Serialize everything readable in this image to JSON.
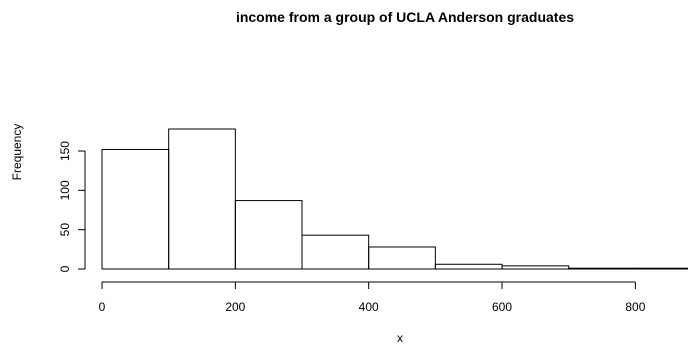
{
  "chart_data": {
    "type": "bar",
    "title": "income from a group of UCLA Anderson graduates",
    "xlabel": "x",
    "ylabel": "Frequency",
    "bins": [
      {
        "from": 0,
        "to": 100,
        "count": 152
      },
      {
        "from": 100,
        "to": 200,
        "count": 178
      },
      {
        "from": 200,
        "to": 300,
        "count": 87
      },
      {
        "from": 300,
        "to": 400,
        "count": 43
      },
      {
        "from": 400,
        "to": 500,
        "count": 28
      },
      {
        "from": 500,
        "to": 600,
        "count": 6
      },
      {
        "from": 600,
        "to": 700,
        "count": 4
      },
      {
        "from": 700,
        "to": 800,
        "count": 1
      },
      {
        "from": 800,
        "to": 900,
        "count": 1
      }
    ],
    "xticks": [
      0,
      200,
      400,
      600,
      800
    ],
    "yticks": [
      0,
      50,
      100,
      150
    ],
    "xlim": [
      0,
      900
    ],
    "ylim": [
      0,
      178
    ],
    "grid": false
  }
}
